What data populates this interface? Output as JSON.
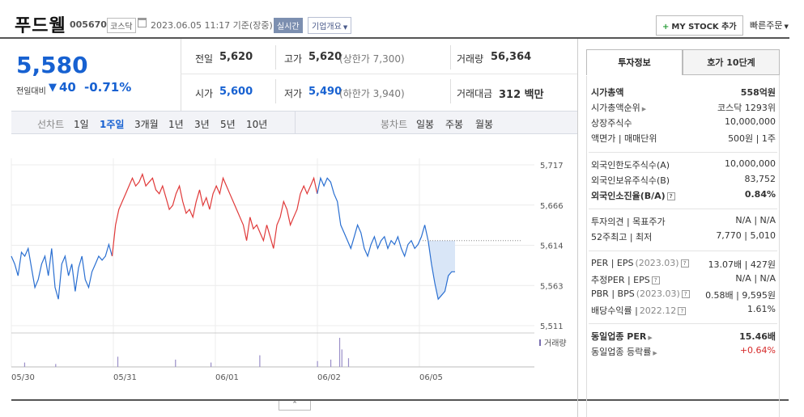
{
  "header": {
    "name": "푸드웰",
    "code": "005670",
    "market": "코스닥",
    "date": "2023.06.05 11:17 기준(장중)",
    "live": "실시간",
    "company_overview": "기업개요",
    "mystock": "MY STOCK 추가",
    "quick_order": "빠른주문"
  },
  "price": {
    "current": "5,580",
    "change_label": "전일대비",
    "change": "40",
    "rate": "-0.71%"
  },
  "stats": {
    "prev_close_label": "전일",
    "prev_close": "5,620",
    "high_label": "고가",
    "high": "5,620",
    "high_sub": "(상한가 7,300)",
    "volume_label": "거래량",
    "volume": "56,364",
    "open_label": "시가",
    "open": "5,600",
    "low_label": "저가",
    "low": "5,490",
    "low_sub": "(하한가 3,940)",
    "amount_label": "거래대금",
    "amount": "312 백만"
  },
  "periods": {
    "line_label": "선차트",
    "line": [
      "1일",
      "1주일",
      "3개월",
      "1년",
      "3년",
      "5년",
      "10년"
    ],
    "active": "1주일",
    "candle_label": "봉차트",
    "candle": [
      "일봉",
      "주봉",
      "월봉"
    ]
  },
  "chart_data": {
    "type": "line",
    "y_ticks": [
      "5,717",
      "5,666",
      "5,614",
      "5,563",
      "5,511"
    ],
    "x_ticks": [
      "05/30",
      "05/31",
      "06/01",
      "06/02",
      "06/05"
    ],
    "ylim": [
      5511,
      5717
    ],
    "reference_line": 5620,
    "volume_label": "거래량",
    "colors": {
      "up": "#e03a3a",
      "down": "#2a6fd1",
      "fill": "#d9e6f7"
    },
    "series": [
      {
        "color": "#2a6fd1",
        "values": [
          5600,
          5590,
          5575,
          5605,
          5600,
          5610,
          5585,
          5560,
          5570,
          5590,
          5600,
          5575,
          5610,
          5560,
          5545,
          5590,
          5600,
          5575,
          5590,
          5555,
          5585,
          5600,
          5570,
          5560,
          5580,
          5590,
          5600,
          5595,
          5600,
          5615,
          5600
        ]
      },
      {
        "color": "#e03a3a",
        "values": [
          5600,
          5640,
          5660,
          5670,
          5680,
          5690,
          5700,
          5690,
          5695,
          5705,
          5690,
          5695,
          5700,
          5685,
          5680,
          5690,
          5675,
          5660,
          5665,
          5680,
          5690,
          5670,
          5655,
          5660,
          5650,
          5670,
          5685,
          5665,
          5675,
          5660,
          5680,
          5690,
          5680,
          5700,
          5690,
          5680,
          5670,
          5660,
          5650,
          5640,
          5620,
          5650,
          5635,
          5640,
          5630,
          5620,
          5640,
          5625,
          5610,
          5640,
          5650,
          5670,
          5660,
          5640,
          5650,
          5660,
          5680,
          5690,
          5680,
          5690,
          5700,
          5680
        ]
      },
      {
        "color": "#2a6fd1",
        "values": [
          5680,
          5700,
          5690,
          5700,
          5695,
          5680,
          5670,
          5640,
          5630,
          5620,
          5610,
          5625,
          5640,
          5630,
          5610,
          5600,
          5615,
          5625,
          5610,
          5620,
          5625,
          5610,
          5620,
          5615,
          5625,
          5610,
          5600,
          5615,
          5620,
          5610,
          5615,
          5625,
          5640,
          5620
        ]
      },
      {
        "color": "#2a6fd1",
        "values": [
          5620,
          5590,
          5565,
          5545,
          5550,
          5555,
          5575,
          5580,
          5580
        ]
      }
    ],
    "volume_spikes": [
      {
        "x_index": 0.03,
        "v": 0.15
      },
      {
        "x_index": 0.1,
        "v": 0.1
      },
      {
        "x_index": 0.24,
        "v": 0.35
      },
      {
        "x_index": 0.37,
        "v": 0.25
      },
      {
        "x_index": 0.45,
        "v": 0.15
      },
      {
        "x_index": 0.56,
        "v": 0.4
      },
      {
        "x_index": 0.69,
        "v": 0.2
      },
      {
        "x_index": 0.72,
        "v": 0.25
      },
      {
        "x_index": 0.74,
        "v": 1.0
      },
      {
        "x_index": 0.745,
        "v": 0.6
      },
      {
        "x_index": 0.76,
        "v": 0.3
      }
    ]
  },
  "panel": {
    "tab_invest": "투자정보",
    "tab_orderbook": "호가 10단계",
    "rows1": [
      {
        "l": "시가총액",
        "r": "558억원",
        "bold": true
      },
      {
        "l": "시가총액순위",
        "r": "코스닥 1293위"
      },
      {
        "l": "상장주식수",
        "r": "10,000,000"
      },
      {
        "l": "액면가 | 매매단위",
        "r": "500원 | 1주"
      }
    ],
    "rows2": [
      {
        "l": "외국인한도주식수(A)",
        "r": "10,000,000"
      },
      {
        "l": "외국인보유주식수(B)",
        "r": "83,752"
      },
      {
        "l": "외국인소진율(B/A)",
        "r": "0.84%",
        "bold": true
      }
    ],
    "rows3": [
      {
        "l": "투자의견 | 목표주가",
        "r": "N/A | N/A"
      },
      {
        "l": "52주최고 | 최저",
        "r": "7,770 | 5,010"
      }
    ],
    "rows4": [
      {
        "l": "PER | EPS",
        "lg": "(2023.03)",
        "r": "13.07배 | 427원"
      },
      {
        "l": "추정PER | EPS",
        "r": "N/A | N/A"
      },
      {
        "l": "PBR | BPS",
        "lg": "(2023.03)",
        "r": "0.58배 | 9,595원"
      },
      {
        "l": "배당수익률 |",
        "lg": "2022.12",
        "r": "1.61%"
      }
    ],
    "rows5": [
      {
        "l": "동일업종 PER",
        "r": "15.46배",
        "bold": true
      },
      {
        "l": "동일업종 등락률",
        "r": "+0.64%",
        "red": true
      }
    ]
  }
}
